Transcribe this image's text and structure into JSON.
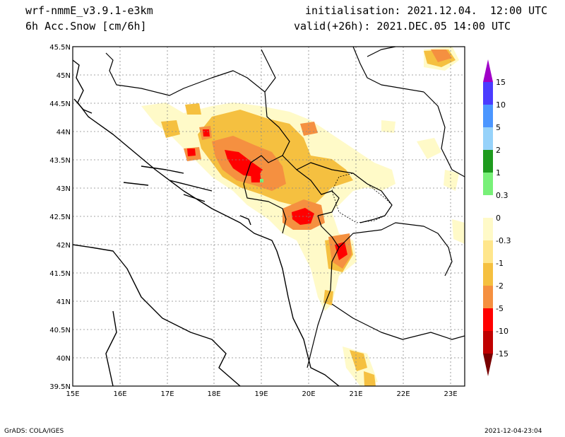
{
  "header": {
    "model": "wrf-nmmE_v3.9.1-e3km",
    "field": "6h Acc.Snow [cm/6h]",
    "init": "initialisation: 2021.12.04.  12:00 UTC",
    "valid": "valid(+26h): 2021.DEC.05 14:00 UTC"
  },
  "map": {
    "lat_labels": [
      "45.5N",
      "45N",
      "44.5N",
      "44N",
      "43.5N",
      "43N",
      "42.5N",
      "42N",
      "41.5N",
      "41N",
      "40.5N",
      "40N",
      "39.5N"
    ],
    "lon_labels": [
      "15E",
      "16E",
      "17E",
      "18E",
      "19E",
      "20E",
      "21E",
      "22E",
      "23E"
    ]
  },
  "colorbar": {
    "labels": [
      "15",
      "10",
      "5",
      "2",
      "1",
      "0.3",
      "0",
      "-0.3",
      "-1",
      "-2",
      "-5",
      "-10",
      "-15"
    ],
    "colors": [
      "#a000c8",
      "#4b3cff",
      "#4b96ff",
      "#96d2fa",
      "#1e9b1e",
      "#78f078",
      "#ffffff",
      "#fffac8",
      "#ffe68c",
      "#f5c040",
      "#f59040",
      "#ff0000",
      "#c00000",
      "#780000"
    ]
  },
  "footer": {
    "left": "GrADS: COLA/IGES",
    "right": "2021-12-04-23:04"
  }
}
